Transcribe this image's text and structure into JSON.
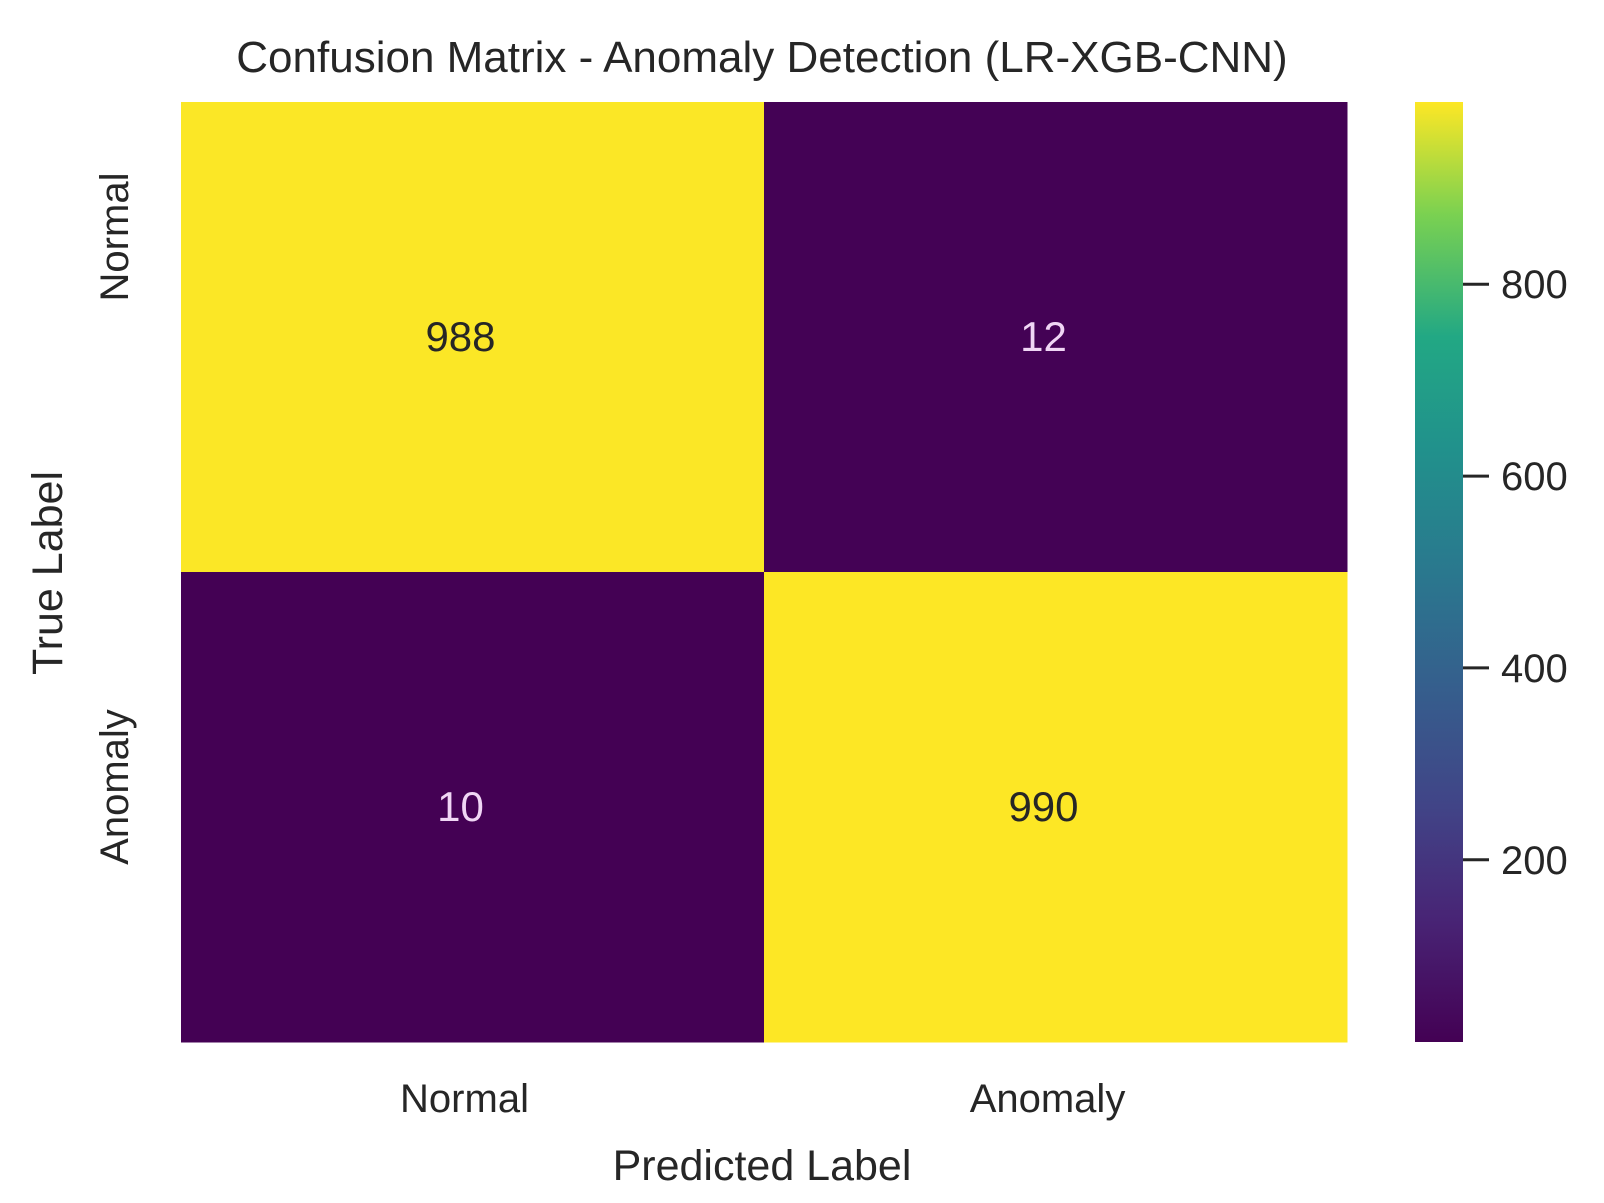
{
  "chart_data": {
    "type": "heatmap",
    "title": "Confusion Matrix - Anomaly Detection (LR-XGB-CNN)",
    "xlabel": "Predicted Label",
    "ylabel": "True Label",
    "x_categories": [
      "Normal",
      "Anomaly"
    ],
    "y_categories": [
      "Normal",
      "Anomaly"
    ],
    "values": [
      [
        988,
        12
      ],
      [
        10,
        990
      ]
    ],
    "colormap": "viridis",
    "colorbar": {
      "range": [
        10,
        990
      ],
      "ticks": [
        200,
        400,
        600,
        800
      ],
      "tick_labels": [
        "200",
        "400",
        "600",
        "800"
      ]
    },
    "annotation_colors": {
      "on_light": "#262626",
      "on_dark": "#f0d6f5"
    },
    "grid": false,
    "legend": "colorbar-right"
  }
}
